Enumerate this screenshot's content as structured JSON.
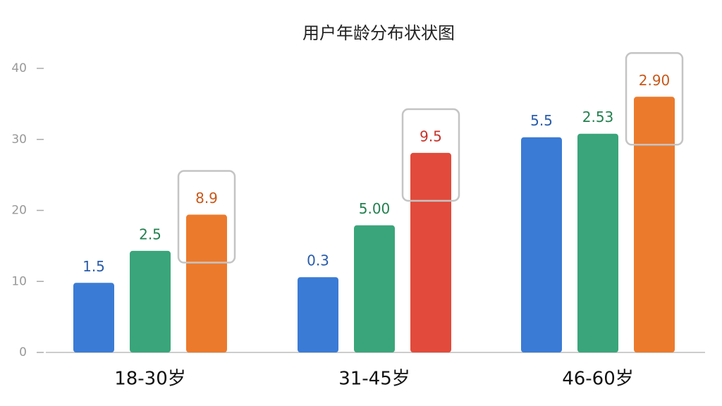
{
  "chart_data": {
    "type": "bar",
    "title": "用户年龄分布状状图",
    "categories": [
      "18-30岁",
      "31-45岁",
      "46-60岁"
    ],
    "series": [
      {
        "color": "#3a7bd5",
        "label_color": "#2a5caa",
        "values": [
          9.8,
          10.6,
          30.3
        ],
        "labels": [
          "1.5",
          "0.3",
          "5.5"
        ]
      },
      {
        "color": "#3aa57a",
        "label_color": "#23804f",
        "values": [
          14.3,
          17.9,
          30.8
        ],
        "labels": [
          "2.5",
          "5.00",
          "2.53"
        ]
      },
      {
        "colors": [
          "#ec7a2c",
          "#e24a3b",
          "#ec7a2c"
        ],
        "label_colors": [
          "#c8581a",
          "#c8322a",
          "#c8581a"
        ],
        "values": [
          19.4,
          28.1,
          36
        ],
        "labels": [
          "8.9",
          "9.5",
          "2.90"
        ]
      }
    ],
    "ylim": [
      0,
      40
    ],
    "yticks": [
      0,
      10,
      20,
      30,
      40
    ],
    "grid": false
  }
}
